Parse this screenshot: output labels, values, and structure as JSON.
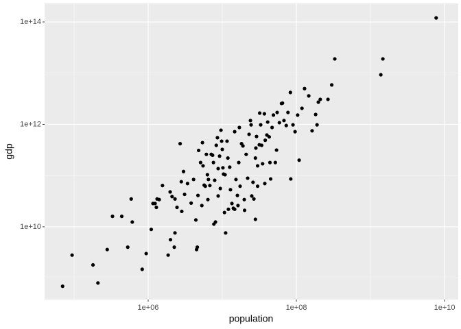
{
  "chart_data": {
    "type": "scatter",
    "xlabel": "population",
    "ylabel": "gdp",
    "xscale": "log",
    "yscale": "log",
    "grid": true,
    "color": "#000000",
    "background": "#ebebeb",
    "xlim": [
      40000,
      15300000000.0
    ],
    "ylim": [
      380000000.0,
      230000000000000.0
    ],
    "xticks": [
      {
        "value": 1000000.0,
        "label": "1e+06"
      },
      {
        "value": 100000000.0,
        "label": "1e+08"
      },
      {
        "value": 10000000000.0,
        "label": "1e+10"
      }
    ],
    "yticks": [
      {
        "value": 10000000000.0,
        "label": "1e+10"
      },
      {
        "value": 1000000000000.0,
        "label": "1e+12"
      },
      {
        "value": 100000000000000.0,
        "label": "1e+14"
      }
    ],
    "x": [
      70000.0,
      94000.0,
      180000.0,
      210000.0,
      280000.0,
      330000.0,
      440000.0,
      530000.0,
      590000.0,
      610000.0,
      830000.0,
      940000.0,
      1100000.0,
      1160000.0,
      1240000.0,
      1290000.0,
      1320000.0,
      1410000.0,
      1560000.0,
      1860000.0,
      1980000.0,
      2000000.0,
      2100000.0,
      2250000.0,
      2300000.0,
      2450000.0,
      2700000.0,
      2800000.0,
      2840000.0,
      3000000.0,
      3100000.0,
      3400000.0,
      3800000.0,
      4100000.0,
      4400000.0,
      4500000.0,
      4600000.0,
      4800000.0,
      5100000.0,
      5300000.0,
      5400000.0,
      5500000.0,
      5700000.0,
      5900000.0,
      6300000.0,
      6400000.0,
      6500000.0,
      6800000.0,
      7100000.0,
      7400000.0,
      7600000.0,
      7700000.0,
      8100000.0,
      8300000.0,
      8600000.0,
      8800000.0,
      9200000.0,
      9400000.0,
      9600000.0,
      9800000.0,
      10000000.0,
      10200000.0,
      10400000.0,
      10700000.0,
      10900000.0,
      11100000.0,
      11600000.0,
      11900000.0,
      12100000.0,
      12600000.0,
      12900000.0,
      13500000.0,
      14100000.0,
      14700000.0,
      15300000.0,
      16000000.0,
      16700000.0,
      17000000.0,
      17400000.0,
      18200000.0,
      19000000.0,
      19800000.0,
      20000000.0,
      21000000.0,
      22000000.0,
      23000000.0,
      24000000.0,
      24500000.0,
      25000000.0,
      26000000.0,
      26700000.0,
      28000000.0,
      28400000.0,
      29000000.0,
      30000000.0,
      31600000.0,
      32000000.0,
      33000000.0,
      34000000.0,
      35000000.0,
      37000000.0,
      37500000.0,
      38000000.0,
      40000000.0,
      41000000.0,
      43000000.0,
      44000000.0,
      45000000.0,
      47000000.0,
      49000000.0,
      52000000.0,
      54000000.0,
      55000000.0,
      59000000.0,
      63000000.0,
      65000000.0,
      68000000.0,
      73000000.0,
      77000000.0,
      83000000.0,
      84000000.0,
      90000000.0,
      96000000.0,
      104000000.0,
      109000000.0,
      119000000.0,
      129000000.0,
      147000000.0,
      163000000.0,
      182000000.0,
      190000000.0,
      210000000.0,
      198000000.0,
      267000000.0,
      300000000.0,
      330000000.0,
      1380000000.0,
      1470000000.0,
      7700000000.0,
      6100000.0,
      7900000.0,
      16300000.0,
      28000000.0,
      14700000.0,
      2300000.0,
      4700000.0,
      8800000.0,
      30000000.0
    ],
    "values": [
      690000000.0,
      2800000000.0,
      1800000000.0,
      800000000.0,
      3600000000.0,
      16000000000.0,
      16000000000.0,
      4000000000.0,
      35000000000.0,
      12400000000.0,
      1480000000.0,
      3000000000.0,
      8900000000.0,
      28500000000.0,
      28500000000.0,
      24000000000.0,
      35000000000.0,
      34000000000.0,
      64000000000.0,
      2800000000.0,
      48000000000.0,
      5600000000.0,
      39000000000.0,
      4000000000.0,
      35000000000.0,
      24000000000.0,
      420000000000.0,
      76000000000.0,
      20000000000.0,
      120000000000.0,
      43000000000.0,
      70000000000.0,
      29000000000.0,
      84000000000.0,
      13600000000.0,
      3600000000.0,
      4000000000.0,
      310000000000.0,
      180000000000.0,
      26000000000.0,
      440000000000.0,
      155000000000.0,
      65000000000.0,
      62000000000.0,
      104000000000.0,
      34000000000.0,
      84000000000.0,
      64000000000.0,
      260000000000.0,
      250000000000.0,
      180000000000.0,
      11300000000.0,
      12400000000.0,
      390000000000.0,
      550000000000.0,
      137000000000.0,
      240000000000.0,
      56000000000.0,
      770000000000.0,
      470000000000.0,
      325000000000.0,
      142000000000.0,
      107000000000.0,
      19000000000.0,
      104000000000.0,
      7600000000.0,
      470000000000.0,
      220000000000.0,
      22000000000.0,
      146000000000.0,
      53000000000.0,
      28500000000.0,
      23000000000.0,
      22000000000.0,
      84000000000.0,
      41000000000.0,
      180000000000.0,
      870000000000.0,
      62000000000.0,
      420000000000.0,
      380000000000.0,
      34000000000.0,
      21000000000.0,
      260000000000.0,
      89000000000.0,
      640000000000.0,
      1190000000000.0,
      980000000000.0,
      40000000000.0,
      74000000000.0,
      35000000000.0,
      220000000000.0,
      345000000000.0,
      580000000000.0,
      62000000000.0,
      400000000000.0,
      1660000000000.0,
      980000000000.0,
      390000000000.0,
      170000000000.0,
      1610000000000.0,
      70000000000.0,
      490000000000.0,
      620000000000.0,
      1110000000000.0,
      570000000000.0,
      180000000000.0,
      86000000000.0,
      870000000000.0,
      1520000000000.0,
      180000000000.0,
      315000000000.0,
      1710000000000.0,
      1080000000000.0,
      2560000000000.0,
      2600000000000.0,
      1190000000000.0,
      950000000000.0,
      1710000000000.0,
      4200000000000.0,
      86000000000.0,
      980000000000.0,
      720000000000.0,
      1520000000000.0,
      200000000000.0,
      2060000000000.0,
      5000000000000.0,
      3600000000000.0,
      750000000000.0,
      1560000000000.0,
      980000000000.0,
      3080000000000.0,
      2720000000000.0,
      3080000000000.0,
      5900000000000.0,
      19000000000000.0,
      9300000000000.0,
      19000000000000.0,
      120000000000000.0,
      260000000000.0,
      81000000000.0,
      26000000000.0,
      14000000000.0,
      720000000000.0,
      7600000000.0,
      41000000000.0,
      40000000000.0,
      155000000000.0
    ]
  }
}
